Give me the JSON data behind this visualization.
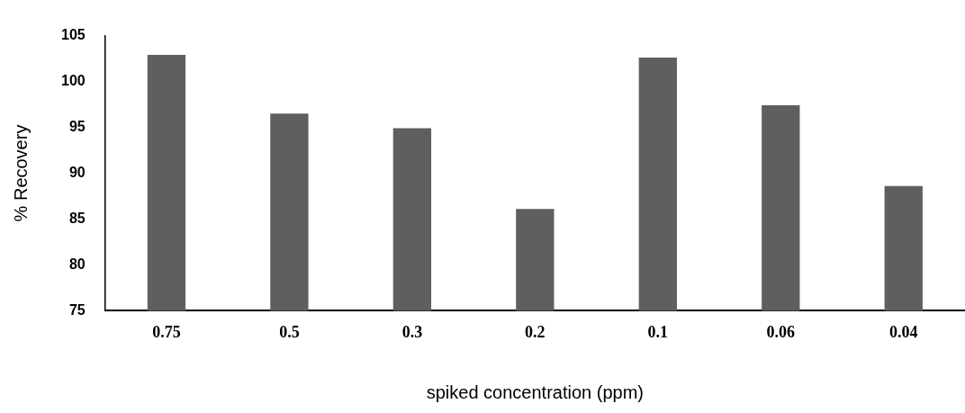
{
  "chart_data": {
    "type": "bar",
    "xlabel": "spiked concentration (ppm)",
    "ylabel": "% Recovery",
    "categories": [
      "0.75",
      "0.5",
      "0.3",
      "0.2",
      "0.1",
      "0.06",
      "0.04"
    ],
    "values": [
      102.9,
      96.5,
      94.9,
      86.1,
      102.6,
      97.4,
      88.6
    ],
    "color": "#5f5f5f",
    "ylim": [
      75,
      105
    ],
    "yticks": [
      75,
      80,
      85,
      90,
      95,
      100,
      105
    ],
    "grid": false,
    "legend": false
  }
}
